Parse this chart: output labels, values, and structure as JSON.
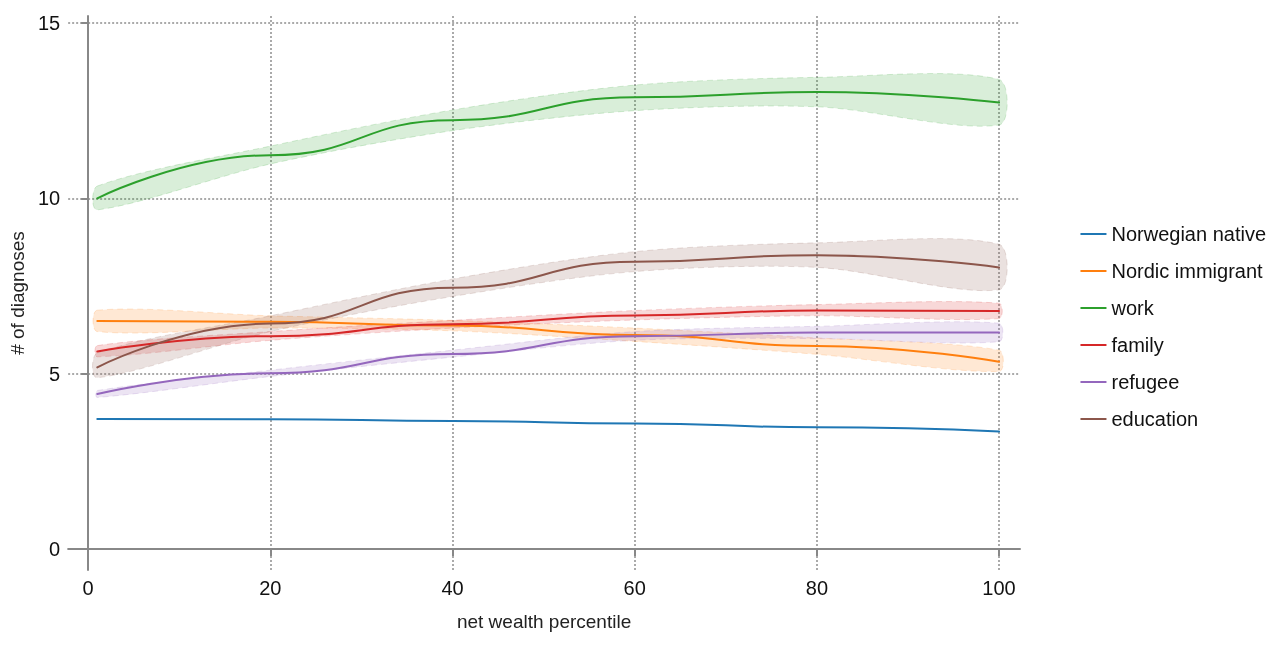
{
  "chart_data": {
    "type": "line",
    "xlabel": "net wealth percentile",
    "ylabel": "# of diagnoses",
    "x": [
      1,
      20,
      40,
      60,
      80,
      100
    ],
    "series": [
      {
        "name": "Norwegian native",
        "color": "#1f77b4",
        "values": [
          3.71,
          3.7,
          3.65,
          3.58,
          3.47,
          3.35
        ]
      },
      {
        "name": "Nordic immigrant",
        "color": "#ff7f0e",
        "values": [
          6.5,
          6.48,
          6.37,
          6.1,
          5.79,
          5.34
        ],
        "lower": [
          6.2,
          6.3,
          6.22,
          5.92,
          5.55,
          5.06
        ],
        "upper": [
          6.81,
          6.65,
          6.52,
          6.3,
          6.02,
          5.67
        ]
      },
      {
        "name": "work",
        "color": "#2ca02c",
        "values": [
          10.0,
          11.23,
          12.23,
          12.88,
          13.03,
          12.73
        ],
        "lower": [
          9.67,
          10.98,
          11.93,
          12.5,
          12.61,
          12.09
        ],
        "upper": [
          10.35,
          11.49,
          12.52,
          13.23,
          13.45,
          13.39
        ]
      },
      {
        "name": "family",
        "color": "#d62728",
        "values": [
          5.63,
          6.07,
          6.41,
          6.66,
          6.8,
          6.79
        ],
        "lower": [
          5.48,
          5.95,
          6.3,
          6.53,
          6.65,
          6.57
        ],
        "upper": [
          5.8,
          6.2,
          6.52,
          6.8,
          6.97,
          7.01
        ]
      },
      {
        "name": "refugee",
        "color": "#9467bd",
        "values": [
          4.42,
          5.01,
          5.56,
          6.07,
          6.17,
          6.17
        ],
        "lower": [
          4.32,
          4.92,
          5.47,
          5.95,
          6.0,
          5.91
        ],
        "upper": [
          4.52,
          5.1,
          5.67,
          6.2,
          6.35,
          6.44
        ]
      },
      {
        "name": "education",
        "color": "#8c564b",
        "values": [
          5.18,
          6.43,
          7.45,
          8.19,
          8.38,
          8.03
        ],
        "lower": [
          4.88,
          6.2,
          7.2,
          7.91,
          8.03,
          7.39
        ],
        "upper": [
          5.59,
          6.65,
          7.7,
          8.48,
          8.73,
          8.69
        ]
      }
    ],
    "xlim": [
      -2.2,
      102.3
    ],
    "xticks": [
      0,
      20,
      40,
      60,
      80,
      100
    ],
    "ylim": [
      -0.6,
      15.2
    ],
    "yticks": [
      0,
      5,
      10,
      15
    ],
    "grid": true,
    "legend": "right",
    "marker": "none",
    "line_style": "solid"
  }
}
